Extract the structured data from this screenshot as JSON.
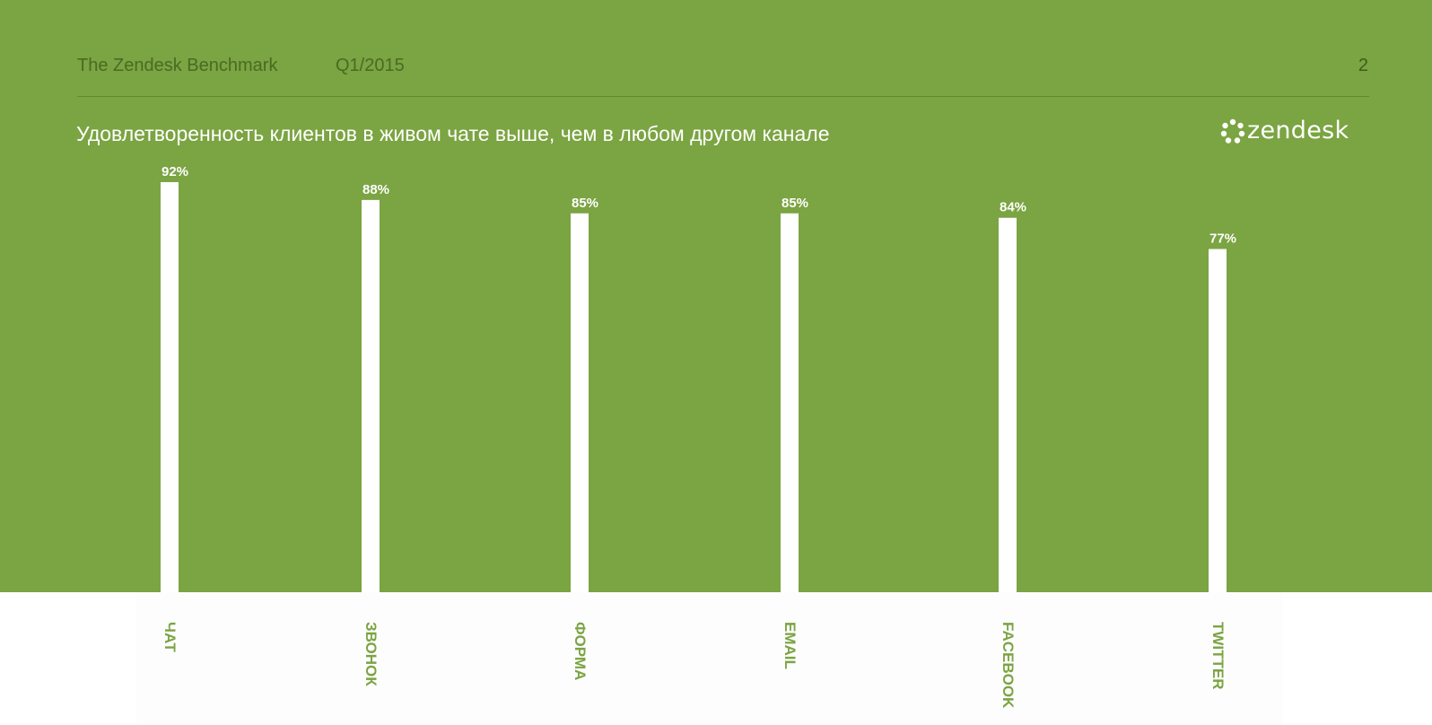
{
  "header": {
    "title": "The Zendesk Benchmark",
    "period": "Q1/2015",
    "page_number": "2"
  },
  "subtitle": "Удовлетворенность клиентов в живом чате выше, чем в любом другом канале",
  "logo": {
    "text": "zendesk",
    "icon": "zendesk-logo-icon"
  },
  "colors": {
    "background": "#7ba442",
    "bars": "#ffffff",
    "category_labels": "#7ba442"
  },
  "chart_data": {
    "type": "bar",
    "title": "Удовлетворенность клиентов в живом чате выше, чем в любом другом канале",
    "categories": [
      "ЧАТ",
      "ЗВОНОК",
      "ФОРМА",
      "EMAIL",
      "FACEBOOK",
      "TWITTER"
    ],
    "values": [
      92,
      88,
      85,
      85,
      84,
      77
    ],
    "value_labels": [
      "92%",
      "88%",
      "85%",
      "85%",
      "84%",
      "77%"
    ],
    "unit": "%",
    "xlabel": "",
    "ylabel": "",
    "grid": false,
    "legend": "none",
    "category_label_orientation": "vertical"
  }
}
